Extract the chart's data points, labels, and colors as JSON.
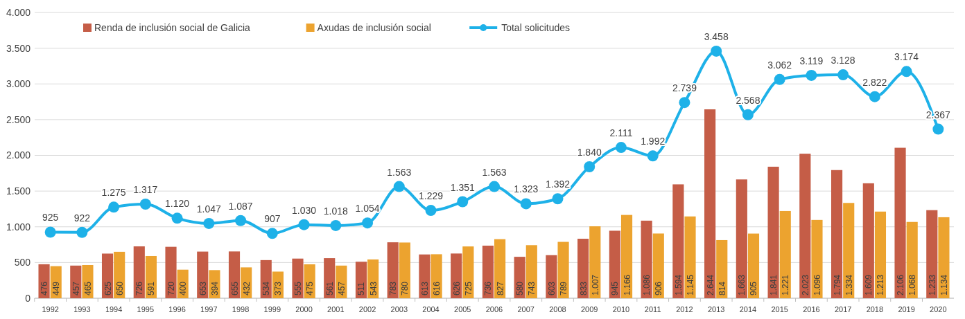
{
  "chart_data": {
    "type": "bar",
    "categories": [
      "1992",
      "1993",
      "1994",
      "1995",
      "1996",
      "1997",
      "1998",
      "1999",
      "2000",
      "2001",
      "2002",
      "2003",
      "2004",
      "2005",
      "2006",
      "2007",
      "2008",
      "2009",
      "2010",
      "2011",
      "2012",
      "2013",
      "2014",
      "2015",
      "2016",
      "2017",
      "2018",
      "2019",
      "2020"
    ],
    "series": [
      {
        "name": "Renda de inclusión social de Galicia",
        "color": "#c55d47",
        "values": [
          476,
          457,
          625,
          726,
          720,
          653,
          655,
          534,
          555,
          561,
          511,
          783,
          613,
          626,
          736,
          580,
          603,
          833,
          945,
          1086,
          1594,
          2644,
          1663,
          1841,
          2023,
          1794,
          1609,
          2106,
          1233
        ],
        "value_labels": [
          "476",
          "457",
          "625",
          "726",
          "720",
          "653",
          "655",
          "534",
          "555",
          "561",
          "511",
          "783",
          "613",
          "626",
          "736",
          "580",
          "603",
          "833",
          "945",
          "1.086",
          "1.594",
          "2.644",
          "1.663",
          "1.841",
          "2.023",
          "1.794",
          "1.609",
          "2.106",
          "1.233"
        ]
      },
      {
        "name": "Axudas de inclusión social",
        "color": "#eca32f",
        "values": [
          449,
          465,
          650,
          591,
          400,
          394,
          432,
          373,
          475,
          457,
          543,
          780,
          616,
          725,
          827,
          743,
          789,
          1007,
          1166,
          906,
          1145,
          814,
          905,
          1221,
          1096,
          1334,
          1213,
          1068,
          1134
        ],
        "value_labels": [
          "449",
          "465",
          "650",
          "591",
          "400",
          "394",
          "432",
          "373",
          "475",
          "457",
          "543",
          "780",
          "616",
          "725",
          "827",
          "743",
          "789",
          "1.007",
          "1.166",
          "906",
          "1.145",
          "814",
          "905",
          "1.221",
          "1.096",
          "1.334",
          "1.213",
          "1.068",
          "1.134"
        ]
      },
      {
        "name": "Total solicitudes",
        "type": "line",
        "color": "#1eb1e8",
        "values": [
          925,
          922,
          1275,
          1317,
          1120,
          1047,
          1087,
          907,
          1030,
          1018,
          1054,
          1563,
          1229,
          1351,
          1563,
          1323,
          1392,
          1840,
          2111,
          1992,
          2739,
          3458,
          2568,
          3062,
          3119,
          3128,
          2822,
          3174,
          2367
        ],
        "value_labels": [
          "925",
          "922",
          "1.275",
          "1.317",
          "1.120",
          "1.047",
          "1.087",
          "907",
          "1.030",
          "1.018",
          "1.054",
          "1.563",
          "1.229",
          "1.351",
          "1.563",
          "1.323",
          "1.392",
          "1.840",
          "2.111",
          "1.992",
          "2.739",
          "3.458",
          "2.568",
          "3.062",
          "3.119",
          "3.128",
          "2.822",
          "3.174",
          "2.367"
        ]
      }
    ],
    "ylim": [
      0,
      4000
    ],
    "yticks": [
      0,
      500,
      {
        "value": 1000,
        "label": "1.000"
      },
      {
        "value": 1500,
        "label": "1.500"
      },
      {
        "value": 2000,
        "label": "2.000"
      },
      {
        "value": 2500,
        "label": "2.500"
      },
      {
        "value": 3000,
        "label": "3.000"
      },
      {
        "value": 3500,
        "label": "3.500"
      },
      {
        "value": 4000,
        "label": "4.000"
      }
    ],
    "grid": "y",
    "legend": "top left",
    "marker": "circle",
    "line_style": "solid"
  }
}
